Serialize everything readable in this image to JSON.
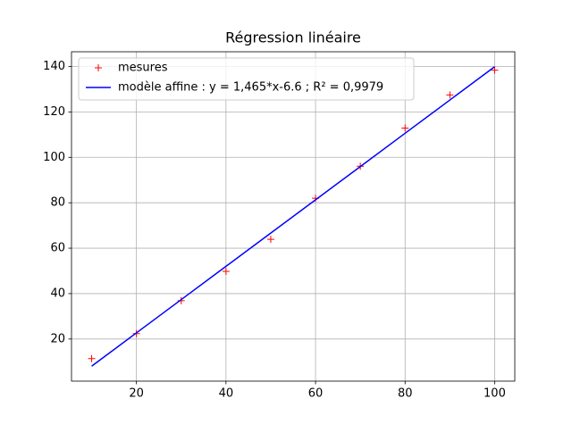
{
  "chart_data": {
    "type": "line",
    "title": "Régression linéaire",
    "x": [
      10,
      20,
      30,
      40,
      50,
      60,
      70,
      80,
      90,
      100
    ],
    "series": [
      {
        "name": "mesures",
        "color": "#ff0000",
        "marker": "+",
        "linestyle": "none",
        "values": [
          11.4,
          22.4,
          36.9,
          49.8,
          63.9,
          82.0,
          96.1,
          112.9,
          127.5,
          138.4
        ]
      },
      {
        "name": "modèle affine : y = 1,465*x-6.6  ;  R² = 0,9979",
        "color": "#0000ff",
        "marker": "none",
        "linestyle": "solid",
        "values": [
          8.05,
          22.7,
          37.35,
          52.0,
          66.65,
          81.3,
          95.95,
          110.6,
          125.25,
          139.9
        ]
      }
    ],
    "xlim": [
      5.5,
      104.5
    ],
    "xticks": [
      20,
      40,
      60,
      80,
      100
    ],
    "ylim": [
      1.46,
      146.49
    ],
    "yticks": [
      20,
      40,
      60,
      80,
      100,
      120,
      140
    ],
    "grid": true,
    "legend": "upper left"
  }
}
